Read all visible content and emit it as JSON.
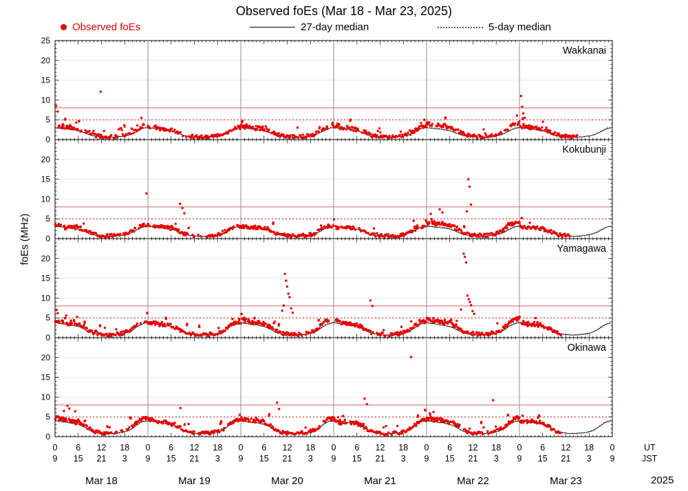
{
  "title": "Observed foEs (Mar 18 - Mar 23, 2025)",
  "legend": {
    "observed": "Observed foEs",
    "median27": "27-day median",
    "median5": "5-day median"
  },
  "ylabel": "foEs (MHz)",
  "axis_right_labels": {
    "ut": "UT",
    "jst": "JST",
    "year": "2025"
  },
  "colors": {
    "observed": "#e60000",
    "median27": "#000000",
    "median5": "#333333",
    "threshold_solid": "#d96060",
    "threshold_dotted": "#cc0000",
    "day_separator": "#808080",
    "gridline": "#dedede",
    "panel_border": "#000000"
  },
  "chart_data": {
    "type": "scatter",
    "title": "Observed foEs (Mar 18 - Mar 23, 2025)",
    "x_hours_range": [
      0,
      144
    ],
    "ylim": [
      0,
      25
    ],
    "y_ticks": [
      0,
      5,
      10,
      15,
      20,
      25
    ],
    "x_day_labels": [
      "Mar 18",
      "Mar 19",
      "Mar 20",
      "Mar 21",
      "Mar 22",
      "Mar 23"
    ],
    "ut_tick_labels": [
      "0",
      "6",
      "12",
      "18"
    ],
    "jst_tick_labels": [
      "9",
      "15",
      "21",
      "3"
    ],
    "thresholds": {
      "solid_mhz": 8,
      "dotted_mhz": 5
    },
    "stations": [
      {
        "name": "Wakkanai",
        "observed_end_hour": 135,
        "day_scale": [
          1.0,
          0.9,
          1.0,
          0.95,
          1.15,
          1.0
        ],
        "diurnal": [
          3.6,
          3.4,
          3.2,
          3.1,
          3.0,
          2.8,
          2.6,
          2.3,
          2.0,
          1.5,
          1.1,
          0.9,
          0.8,
          0.7,
          0.7,
          0.7,
          0.8,
          0.9,
          1.0,
          1.3,
          1.8,
          2.4,
          3.0,
          3.4
        ],
        "median27": [
          3.0,
          2.9,
          2.8,
          2.7,
          2.6,
          2.4,
          2.2,
          1.9,
          1.5,
          1.1,
          0.9,
          0.8,
          0.7,
          0.6,
          0.6,
          0.6,
          0.7,
          0.8,
          0.9,
          1.1,
          1.5,
          2.0,
          2.5,
          2.9
        ],
        "median5": [
          3.3,
          3.1,
          3.0,
          2.9,
          2.8,
          2.6,
          2.3,
          2.0,
          1.6,
          1.2,
          0.9,
          0.8,
          0.7,
          0.7,
          0.6,
          0.7,
          0.7,
          0.8,
          1.0,
          1.2,
          1.6,
          2.2,
          2.7,
          3.1
        ],
        "spikes": [
          [
            0.3,
            8.5
          ],
          [
            0.7,
            7.1
          ],
          [
            11.8,
            12.1
          ],
          [
            120.4,
            11.0
          ],
          [
            120.7,
            8.3
          ],
          [
            121.0,
            6.6
          ],
          [
            121.4,
            5.5
          ]
        ]
      },
      {
        "name": "Kokubunji",
        "observed_end_hour": 133,
        "day_scale": [
          1.0,
          0.95,
          0.95,
          0.9,
          1.2,
          0.9
        ],
        "diurnal": [
          3.4,
          3.2,
          3.1,
          3.0,
          3.0,
          2.9,
          2.7,
          2.4,
          2.0,
          1.5,
          1.1,
          0.9,
          0.8,
          0.7,
          0.7,
          0.7,
          0.8,
          0.9,
          1.1,
          1.4,
          2.0,
          2.6,
          3.1,
          3.4
        ],
        "median27": [
          3.1,
          3.0,
          2.9,
          2.8,
          2.7,
          2.6,
          2.4,
          2.1,
          1.7,
          1.2,
          0.9,
          0.8,
          0.7,
          0.6,
          0.6,
          0.6,
          0.7,
          0.8,
          1.0,
          1.2,
          1.6,
          2.1,
          2.6,
          3.0
        ],
        "median5": [
          3.3,
          3.2,
          3.1,
          3.0,
          2.9,
          2.7,
          2.5,
          2.2,
          1.8,
          1.3,
          1.0,
          0.8,
          0.7,
          0.7,
          0.6,
          0.7,
          0.8,
          0.9,
          1.1,
          1.3,
          1.7,
          2.3,
          2.8,
          3.1
        ],
        "spikes": [
          [
            23.6,
            11.4
          ],
          [
            32.3,
            8.8
          ],
          [
            32.9,
            7.7
          ],
          [
            33.4,
            6.4
          ],
          [
            99.4,
            7.4
          ],
          [
            100.1,
            6.6
          ],
          [
            106.4,
            6.9
          ],
          [
            106.8,
            15.0
          ],
          [
            107.1,
            13.1
          ],
          [
            107.5,
            8.6
          ],
          [
            120.6,
            5.2
          ]
        ]
      },
      {
        "name": "Yamagawa",
        "observed_end_hour": 131,
        "day_scale": [
          1.05,
          0.95,
          1.1,
          1.0,
          1.15,
          0.95
        ],
        "diurnal": [
          4.2,
          4.0,
          3.8,
          3.6,
          3.5,
          3.4,
          3.2,
          2.8,
          2.2,
          1.6,
          1.2,
          1.0,
          0.9,
          0.8,
          0.8,
          0.8,
          0.9,
          1.0,
          1.2,
          1.6,
          2.2,
          3.0,
          3.7,
          4.1
        ],
        "median27": [
          3.8,
          3.6,
          3.5,
          3.3,
          3.2,
          3.0,
          2.8,
          2.4,
          1.9,
          1.4,
          1.1,
          0.9,
          0.8,
          0.7,
          0.7,
          0.7,
          0.8,
          0.9,
          1.1,
          1.4,
          1.9,
          2.6,
          3.2,
          3.6
        ],
        "median5": [
          4.0,
          3.9,
          3.7,
          3.5,
          3.4,
          3.2,
          2.9,
          2.5,
          2.0,
          1.5,
          1.1,
          0.9,
          0.8,
          0.8,
          0.7,
          0.8,
          0.9,
          1.0,
          1.2,
          1.5,
          2.0,
          2.7,
          3.4,
          3.8
        ],
        "spikes": [
          [
            0.4,
            7.0
          ],
          [
            0.7,
            6.2
          ],
          [
            2.9,
            5.6
          ],
          [
            58.7,
            6.8
          ],
          [
            59.1,
            8.1
          ],
          [
            59.4,
            16.1
          ],
          [
            59.7,
            14.4
          ],
          [
            60.0,
            12.9
          ],
          [
            60.3,
            11.1
          ],
          [
            60.6,
            10.2
          ],
          [
            61.0,
            7.4
          ],
          [
            61.4,
            6.3
          ],
          [
            81.5,
            9.4
          ],
          [
            82.0,
            8.0
          ],
          [
            104.9,
            7.1
          ],
          [
            105.6,
            21.2
          ],
          [
            105.9,
            20.4
          ],
          [
            106.2,
            19.0
          ],
          [
            106.6,
            10.6
          ],
          [
            106.9,
            9.7
          ],
          [
            107.2,
            9.0
          ],
          [
            107.5,
            8.2
          ],
          [
            107.9,
            6.7
          ],
          [
            108.3,
            6.0
          ]
        ]
      },
      {
        "name": "Okinawa",
        "observed_end_hour": 131,
        "day_scale": [
          1.1,
          1.0,
          1.05,
          0.95,
          1.1,
          0.95
        ],
        "diurnal": [
          4.4,
          4.2,
          4.0,
          3.9,
          3.8,
          3.6,
          3.4,
          3.0,
          2.4,
          1.8,
          1.3,
          1.0,
          0.9,
          0.8,
          0.8,
          0.9,
          1.0,
          1.1,
          1.3,
          1.7,
          2.3,
          3.1,
          3.8,
          4.3
        ],
        "median27": [
          4.0,
          3.9,
          3.7,
          3.6,
          3.5,
          3.3,
          3.1,
          2.7,
          2.2,
          1.6,
          1.2,
          1.0,
          0.9,
          0.8,
          0.8,
          0.8,
          0.9,
          1.0,
          1.2,
          1.5,
          2.1,
          2.8,
          3.5,
          3.9
        ],
        "median5": [
          4.2,
          4.1,
          3.9,
          3.8,
          3.6,
          3.5,
          3.2,
          2.8,
          2.3,
          1.7,
          1.3,
          1.0,
          0.9,
          0.8,
          0.8,
          0.9,
          1.0,
          1.1,
          1.3,
          1.6,
          2.2,
          3.0,
          3.7,
          4.1
        ],
        "spikes": [
          [
            2.3,
            6.5
          ],
          [
            3.2,
            7.8
          ],
          [
            3.7,
            7.1
          ],
          [
            5.2,
            6.4
          ],
          [
            32.4,
            7.2
          ],
          [
            57.4,
            8.6
          ],
          [
            57.9,
            7.0
          ],
          [
            80.0,
            9.6
          ],
          [
            80.6,
            8.2
          ],
          [
            92.0,
            20.1
          ],
          [
            97.8,
            6.2
          ],
          [
            113.2,
            9.2
          ],
          [
            120.8,
            5.3
          ]
        ]
      }
    ]
  }
}
